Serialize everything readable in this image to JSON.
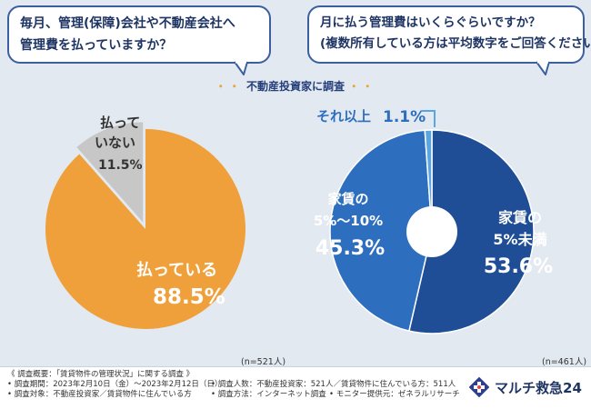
{
  "questions": {
    "q1": {
      "line1": "毎月、管理(保障)会社や不動産会社へ",
      "line2": "管理費を払っていますか？"
    },
    "q2": {
      "line1": "月に払う管理費はいくらぐらいですか？",
      "line2": "(複数所有している方は平均数字をご回答ください)"
    }
  },
  "survey_target": "不動産投資家に調査",
  "survey_dots_left": "・・",
  "survey_dots_right": "・・",
  "colors": {
    "orange": "#f0a03a",
    "gray": "#c7c7c7",
    "blue_dark": "#1f4e96",
    "blue_mid": "#2e6ebf",
    "blue_light": "#5aa6e0",
    "navy_text": "#1e3563"
  },
  "chart_data": [
    {
      "type": "pie",
      "title": "毎月、管理(保障)会社や不動産会社へ管理費を払っていますか？",
      "n_label": "(n=521人)",
      "slices": [
        {
          "label_line1": "払っている",
          "label_line2": "",
          "value": 88.5,
          "value_text": "88.5%",
          "color": "#f0a03a"
        },
        {
          "label_line1": "払って",
          "label_line2": "いない",
          "value": 11.5,
          "value_text": "11.5%",
          "color": "#c7c7c7"
        }
      ]
    },
    {
      "type": "pie",
      "donut": true,
      "title": "月に払う管理費はいくらぐらいですか？",
      "n_label": "(n=461人)",
      "slices": [
        {
          "label_line1": "家賃の",
          "label_line2": "5%未満",
          "value": 53.6,
          "value_text": "53.6%",
          "color": "#1f4e96"
        },
        {
          "label_line1": "家賃の",
          "label_line2": "5%〜10%",
          "value": 45.3,
          "value_text": "45.3%",
          "color": "#2e6ebf"
        },
        {
          "label_line1": "それ以上",
          "label_line2": "",
          "value": 1.1,
          "value_text": "1.1%",
          "color": "#5aa6e0"
        }
      ]
    }
  ],
  "footer": {
    "overview": "《 調査概要：「賃貸物件の管理状況」に関する調査 》",
    "period": "• 調査期間：2023年2月10日（金）〜2023年2月12日（日）",
    "target": "• 調査対象：不動産投資家／賃貸物件に住んでいる方",
    "count": "• 調査人数：不動産投資家：521人／賃貸物件に住んでいる方：511人",
    "method": "• 調査方法：インターネット調査",
    "provider": "• モニター提供元：ゼネラルリサーチ",
    "brand": "マルチ救急24"
  }
}
